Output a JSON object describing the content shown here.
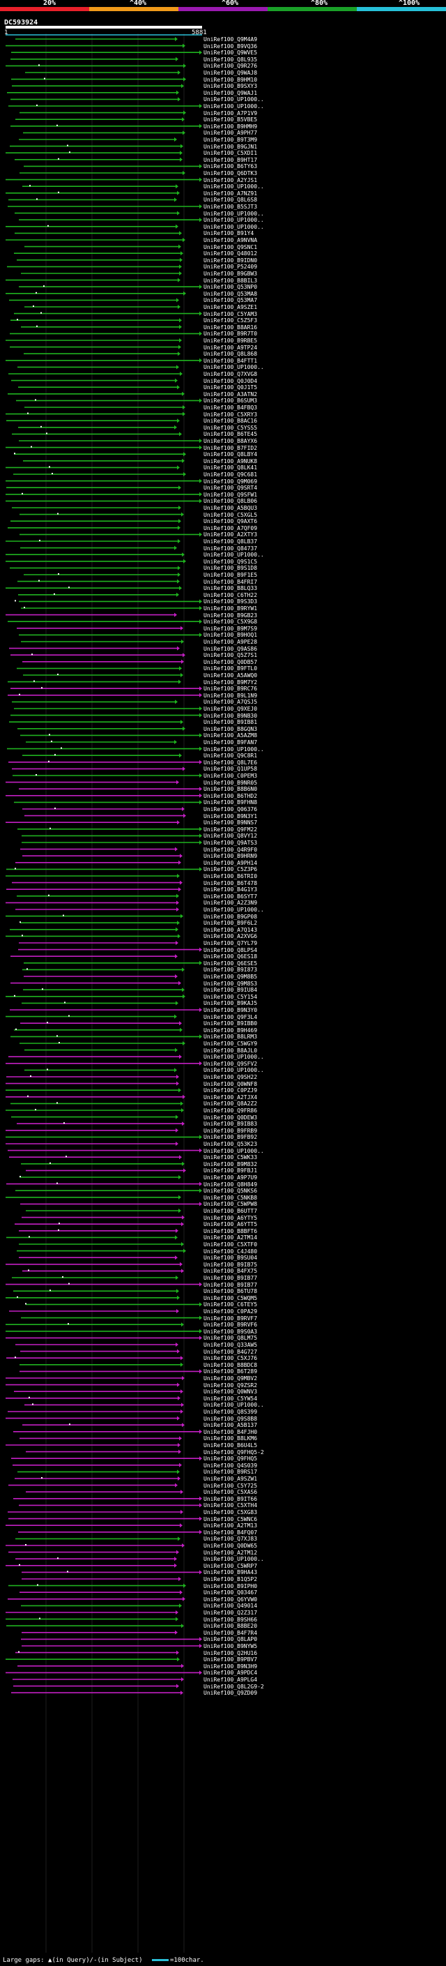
{
  "legend": {
    "labels": [
      "20%",
      "^40%",
      "^60%",
      "^80%",
      "^100%"
    ],
    "colors": [
      "#e8202a",
      "#f09a1a",
      "#9a1ab0",
      "#1aa028",
      "#27c0d8"
    ]
  },
  "query": {
    "name": "DC593924",
    "start": "1",
    "end": "5881"
  },
  "colors": {
    "green": "#1fb21f",
    "magenta": "#c21fc2",
    "cyan": "#2bc0d8",
    "white": "#ffffff"
  },
  "hits": [
    "UniRef100_Q9M4A9",
    "UniRef100_B9VQ36",
    "UniRef100_Q9WVE5",
    "UniRef100_Q8L935",
    "UniRef100_Q9R276",
    "UniRef100_Q9WAJ8",
    "UniRef100_B9HM10",
    "UniRef100_B9SXY3",
    "UniRef100_Q9WAJ1",
    "UniRef100_UP1000..",
    "UniRef100_UP1000..",
    "UniRef100_A7P1V9",
    "UniRef100_B5VBE5",
    "UniRef100_B9HMH9",
    "UniRef100_A9PH77",
    "UniRef100_B9T3M9",
    "UniRef100_B9GJN1",
    "UniRef100_C5XDI1",
    "UniRef100_B9HT17",
    "UniRef100_B6TY63",
    "UniRef100_Q6DTK3",
    "UniRef100_A2YJS1",
    "UniRef100_UP1000..",
    "UniRef100_A7NZ91",
    "UniRef100_Q8L6S8",
    "UniRef100_B5SJT3",
    "UniRef100_UP1000..",
    "UniRef100_UP1000..",
    "UniRef100_UP1000..",
    "UniRef100_B91Y4",
    "UniRef100_A9NVNA",
    "UniRef100_Q9SNC1",
    "UniRef100_Q48012",
    "UniRef100_B9IDN0",
    "UniRef100_P52409",
    "UniRef100_B9GBW3",
    "UniRef100_B8BIL3",
    "UniRef100_Q53NP0",
    "UniRef100_Q53MA8",
    "UniRef100_Q53MA7",
    "UniRef100_A9SZE1",
    "UniRef100_C5YAM3",
    "UniRef100_C5Z5F3",
    "UniRef100_B8AR16",
    "UniRef100_B9R7T0",
    "UniRef100_B9RBE5",
    "UniRef100_A9TP24",
    "UniRef100_Q8L868",
    "UniRef100_B4FTT1",
    "UniRef100_UP1000..",
    "UniRef100_Q7XVG8",
    "UniRef100_Q0J0D4",
    "UniRef100_Q0J1T5",
    "UniRef100_A3ATN2",
    "UniRef100_B6SUM3",
    "UniRef100_B4FBQ3",
    "UniRef100_C5XRY3",
    "UniRef100_B8AC16",
    "UniRef100_C5YSS5",
    "UniRef100_B6TE45",
    "UniRef100_B8AYX6",
    "UniRef100_B7FID2",
    "UniRef100_Q8LBY4",
    "UniRef100_A9NUK8",
    "UniRef100_Q8LK41",
    "UniRef100_Q9C681",
    "UniRef100_Q9M069",
    "UniRef100_Q9SRT4",
    "UniRef100_Q9SFW1",
    "UniRef100_Q8LB06",
    "UniRef100_A5BQU3",
    "UniRef100_C5XGL5",
    "UniRef100_Q9AXT6",
    "UniRef100_A7QF09",
    "UniRef100_A2XTY3",
    "UniRef100_Q8LB37",
    "UniRef100_Q84737",
    "UniRef100_UP1000..",
    "UniRef100_Q9S1C5",
    "UniRef100_B9S1D8",
    "UniRef100_B9F1E5",
    "UniRef100_B4FRI7",
    "UniRef100_B8LQ33",
    "UniRef100_C6TH22",
    "UniRef100_B9S3D3",
    "UniRef100_B9RYW1",
    "UniRef100_B9GB23",
    "UniRef100_C5X9G8",
    "UniRef100_B9M7S9",
    "UniRef100_B9HOQ1",
    "UniRef100_A9PE28",
    "UniRef100_Q9AS86",
    "UniRef100_Q5Z7S1",
    "UniRef100_Q0DB57",
    "UniRef100_B9FTL0",
    "UniRef100_A5AWQ0",
    "UniRef100_B9M7Y2",
    "UniRef100_B9RC76",
    "UniRef100_B9L1N9",
    "UniRef100_A7QSJ5",
    "UniRef100_Q9XEJ0",
    "UniRef100_B9NB30",
    "UniRef100_B9IB81",
    "UniRef100_B8GQN3",
    "UniRef100_A5AZM8",
    "UniRef100_B9FAN7",
    "UniRef100_UP1000..",
    "UniRef100_Q9C8R1",
    "UniRef100_Q8L7E6",
    "UniRef100_Q1UP58",
    "UniRef100_C0PEM3",
    "UniRef100_B9NR05",
    "UniRef100_B8B6N0",
    "UniRef100_B6THD2",
    "UniRef100_B9FHN8",
    "UniRef100_Q06376",
    "UniRef100_B9N3Y1",
    "UniRef100_B9NNS7",
    "UniRef100_Q9FM22",
    "UniRef100_Q8VY12",
    "UniRef100_Q9ATS3",
    "UniRef100_Q4R9F0",
    "UniRef100_B9HRN9",
    "UniRef100_A9PH14",
    "UniRef100_C5Z3P6",
    "UniRef100_B6TRI0",
    "UniRef100_B6T478",
    "UniRef100_B4G1Y3",
    "UniRef100_B6SYT7",
    "UniRef100_A2Z3N9",
    "UniRef100_UP1000..",
    "UniRef100_B9GP08",
    "UniRef100_B9F6L2",
    "UniRef100_A7Q143",
    "UniRef100_A2XVG6",
    "UniRef100_Q7YL79",
    "UniRef100_Q8LPS4",
    "UniRef100_Q6ES18",
    "UniRef100_Q6ESE5",
    "UniRef100_B9I873",
    "UniRef100_Q9M8B5",
    "UniRef100_Q9M8S3",
    "UniRef100_B9IU84",
    "UniRef100_C5Y154",
    "UniRef100_B9KAJ5",
    "UniRef100_B9N3Y0",
    "UniRef100_Q9F3L4",
    "UniRef100_B9IBB0",
    "UniRef100_B9H469",
    "UniRef100_B8LRM3",
    "UniRef100_C5WGY9",
    "UniRef100_B8AJL0",
    "UniRef100_UP1000..",
    "UniRef100_Q9SFV2",
    "UniRef100_UP1000..",
    "UniRef100_Q9SH22",
    "UniRef100_Q0WNF8",
    "UniRef100_C0PZJ9",
    "UniRef100_A2TJX4",
    "UniRef100_Q8A2Z2",
    "UniRef100_Q9FR86",
    "UniRef100_Q0DEW3",
    "UniRef100_B9IB83",
    "UniRef100_B9FRB9",
    "UniRef100_B9FB92",
    "UniRef100_Q53K23",
    "UniRef100_UP1000..",
    "UniRef100_C5WK33",
    "UniRef100_B9M832",
    "UniRef100_B9FBJ1",
    "UniRef100_A9P7U9",
    "UniRef100_Q8H849",
    "UniRef100_Q5NKS6",
    "UniRef100_C5NKB8",
    "UniRef100_C5WPW8",
    "UniRef100_B6UTT7",
    "UniRef100_A6YTY5",
    "UniRef100_A6YTT5",
    "UniRef100_B8BFT6",
    "UniRef100_A2TM14",
    "UniRef100_C5XTF0",
    "UniRef100_C4J480",
    "UniRef100_B9SU04",
    "UniRef100_B9IB75",
    "UniRef100_B4FX75",
    "UniRef100_B9IB77",
    "UniRef100_B9IB77",
    "UniRef100_B6TU78",
    "UniRef100_C5WQM5",
    "UniRef100_C6TEY5",
    "UniRef100_C0PA29",
    "UniRef100_B9RVF7",
    "UniRef100_B9RVF6",
    "UniRef100_B9S0A3",
    "UniRef100_Q8LM75",
    "UniRef100_Q33AW5",
    "UniRef100_B4G727",
    "UniRef100_C5XJ76",
    "UniRef100_B8BDC8",
    "UniRef100_B6T289",
    "UniRef100_Q9MBV2",
    "UniRef100_Q9ZSR2",
    "UniRef100_Q0WNV3",
    "UniRef100_C5YW54",
    "UniRef100_UP1000..",
    "UniRef100_Q8S399",
    "UniRef100_Q9S8B8",
    "UniRef100_A5B137",
    "UniRef100_B4FJH0",
    "UniRef100_B8LKM6",
    "UniRef100_B6U4L5",
    "UniRef100_Q9FHQ5-2",
    "UniRef100_Q9FHQ5",
    "UniRef100_Q4S039",
    "UniRef100_B9RS17",
    "UniRef100_A9SZW1",
    "UniRef100_C5Y725",
    "UniRef100_C5XAS6",
    "UniRef100_B9IT66",
    "UniRef100_C5XTH4",
    "UniRef100_C5XG83",
    "UniRef100_C5WNC6",
    "UniRef100_A2TM13",
    "UniRef100_B4FQ07",
    "UniRef100_Q7XJ83",
    "UniRef100_Q0DW65",
    "UniRef100_A2TM12",
    "UniRef100_UP1000..",
    "UniRef100_C5WRP7",
    "UniRef100_B9HA43",
    "UniRef100_B1Q5P2",
    "UniRef100_B9IPH0",
    "UniRef100_Q03467",
    "UniRef100_Q6YVW0",
    "UniRef100_Q49014",
    "UniRef100_Q2Z317",
    "UniRef100_B9SH66",
    "UniRef100_B8BE20",
    "UniRef100_B4F7R4",
    "UniRef100_Q8LAP0",
    "UniRef100_B9NYW5",
    "UniRef100_Q2HU16",
    "UniRef100_B9PBV7",
    "UniRef100_B9N3H9",
    "UniRef100_A9PDC4",
    "UniRef100_A9PLG4",
    "UniRef100_Q8L2G9-2",
    "UniRef100_Q9ZD09"
  ],
  "footer": {
    "large_gaps": "Large gaps:",
    "in_query": "(in Query)/",
    "in_subject": "-(in Subject)",
    "scale": "=100char."
  }
}
